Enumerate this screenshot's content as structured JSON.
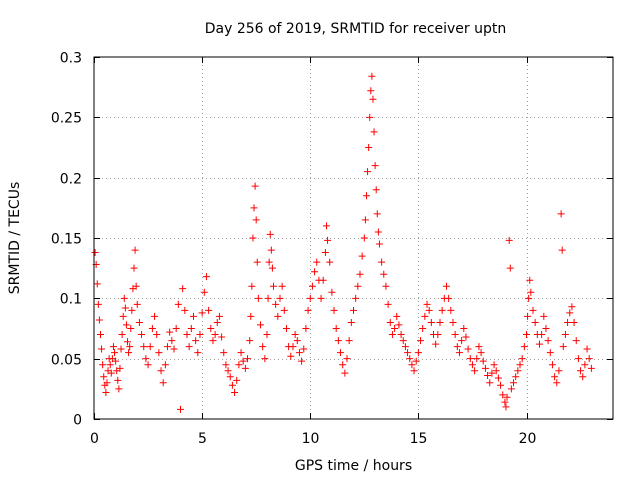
{
  "chart_data": {
    "type": "scatter",
    "title": "Day 256 of 2019, SRMTID for receiver uptn",
    "xlabel": "GPS time / hours",
    "ylabel": "SRMTID / TECUs",
    "xlim": [
      0,
      24
    ],
    "ylim": [
      0,
      0.3
    ],
    "xticks": [
      0,
      5,
      10,
      15,
      20
    ],
    "xtick_labels": [
      "0",
      "5",
      "10",
      "15",
      "20"
    ],
    "yticks": [
      0,
      0.05,
      0.1,
      0.15,
      0.2,
      0.25,
      0.3
    ],
    "ytick_labels": [
      "0",
      "0.05",
      "0.1",
      "0.15",
      "0.2",
      "0.25",
      "0.3"
    ],
    "grid": true,
    "marker": "plus",
    "color": "#ff0000",
    "series": [
      {
        "name": "SRMTID",
        "points": [
          [
            0.05,
            0.138
          ],
          [
            0.1,
            0.128
          ],
          [
            0.15,
            0.112
          ],
          [
            0.2,
            0.095
          ],
          [
            0.25,
            0.082
          ],
          [
            0.3,
            0.07
          ],
          [
            0.35,
            0.058
          ],
          [
            0.4,
            0.045
          ],
          [
            0.45,
            0.035
          ],
          [
            0.5,
            0.028
          ],
          [
            0.55,
            0.022
          ],
          [
            0.6,
            0.03
          ],
          [
            0.65,
            0.04
          ],
          [
            0.7,
            0.05
          ],
          [
            0.75,
            0.045
          ],
          [
            0.8,
            0.038
          ],
          [
            0.85,
            0.05
          ],
          [
            0.9,
            0.06
          ],
          [
            0.95,
            0.055
          ],
          [
            1.0,
            0.048
          ],
          [
            1.05,
            0.04
          ],
          [
            1.1,
            0.032
          ],
          [
            1.15,
            0.025
          ],
          [
            1.2,
            0.042
          ],
          [
            1.25,
            0.058
          ],
          [
            1.3,
            0.07
          ],
          [
            1.35,
            0.085
          ],
          [
            1.4,
            0.1
          ],
          [
            1.45,
            0.092
          ],
          [
            1.5,
            0.078
          ],
          [
            1.55,
            0.064
          ],
          [
            1.6,
            0.055
          ],
          [
            1.65,
            0.06
          ],
          [
            1.7,
            0.075
          ],
          [
            1.75,
            0.09
          ],
          [
            1.8,
            0.108
          ],
          [
            1.85,
            0.125
          ],
          [
            1.9,
            0.14
          ],
          [
            1.95,
            0.11
          ],
          [
            2.0,
            0.095
          ],
          [
            2.1,
            0.08
          ],
          [
            2.2,
            0.07
          ],
          [
            2.3,
            0.06
          ],
          [
            2.4,
            0.05
          ],
          [
            2.5,
            0.045
          ],
          [
            2.6,
            0.06
          ],
          [
            2.7,
            0.075
          ],
          [
            2.8,
            0.085
          ],
          [
            2.9,
            0.07
          ],
          [
            3.0,
            0.055
          ],
          [
            3.1,
            0.04
          ],
          [
            3.2,
            0.03
          ],
          [
            3.3,
            0.045
          ],
          [
            3.4,
            0.06
          ],
          [
            3.5,
            0.072
          ],
          [
            3.6,
            0.065
          ],
          [
            3.7,
            0.058
          ],
          [
            3.8,
            0.075
          ],
          [
            3.9,
            0.095
          ],
          [
            4.0,
            0.008
          ],
          [
            4.1,
            0.108
          ],
          [
            4.2,
            0.09
          ],
          [
            4.3,
            0.07
          ],
          [
            4.4,
            0.06
          ],
          [
            4.5,
            0.075
          ],
          [
            4.6,
            0.085
          ],
          [
            4.7,
            0.065
          ],
          [
            4.8,
            0.055
          ],
          [
            4.9,
            0.07
          ],
          [
            5.0,
            0.088
          ],
          [
            5.1,
            0.105
          ],
          [
            5.2,
            0.118
          ],
          [
            5.3,
            0.09
          ],
          [
            5.4,
            0.075
          ],
          [
            5.5,
            0.065
          ],
          [
            5.6,
            0.07
          ],
          [
            5.7,
            0.08
          ],
          [
            5.8,
            0.085
          ],
          [
            5.9,
            0.068
          ],
          [
            6.0,
            0.055
          ],
          [
            6.1,
            0.045
          ],
          [
            6.2,
            0.04
          ],
          [
            6.3,
            0.035
          ],
          [
            6.4,
            0.028
          ],
          [
            6.5,
            0.022
          ],
          [
            6.6,
            0.032
          ],
          [
            6.7,
            0.045
          ],
          [
            6.8,
            0.055
          ],
          [
            6.9,
            0.048
          ],
          [
            7.0,
            0.042
          ],
          [
            7.1,
            0.05
          ],
          [
            7.2,
            0.065
          ],
          [
            7.25,
            0.085
          ],
          [
            7.3,
            0.11
          ],
          [
            7.35,
            0.15
          ],
          [
            7.4,
            0.175
          ],
          [
            7.45,
            0.193
          ],
          [
            7.5,
            0.165
          ],
          [
            7.55,
            0.13
          ],
          [
            7.6,
            0.1
          ],
          [
            7.7,
            0.078
          ],
          [
            7.8,
            0.06
          ],
          [
            7.9,
            0.05
          ],
          [
            8.0,
            0.07
          ],
          [
            8.05,
            0.1
          ],
          [
            8.1,
            0.13
          ],
          [
            8.15,
            0.153
          ],
          [
            8.2,
            0.14
          ],
          [
            8.25,
            0.125
          ],
          [
            8.3,
            0.11
          ],
          [
            8.4,
            0.095
          ],
          [
            8.5,
            0.085
          ],
          [
            8.6,
            0.1
          ],
          [
            8.7,
            0.11
          ],
          [
            8.8,
            0.09
          ],
          [
            8.9,
            0.075
          ],
          [
            9.0,
            0.06
          ],
          [
            9.1,
            0.052
          ],
          [
            9.2,
            0.06
          ],
          [
            9.3,
            0.07
          ],
          [
            9.4,
            0.065
          ],
          [
            9.5,
            0.055
          ],
          [
            9.6,
            0.048
          ],
          [
            9.7,
            0.058
          ],
          [
            9.8,
            0.075
          ],
          [
            9.9,
            0.09
          ],
          [
            10.0,
            0.1
          ],
          [
            10.1,
            0.11
          ],
          [
            10.2,
            0.122
          ],
          [
            10.3,
            0.13
          ],
          [
            10.4,
            0.115
          ],
          [
            10.5,
            0.1
          ],
          [
            10.6,
            0.115
          ],
          [
            10.7,
            0.138
          ],
          [
            10.75,
            0.16
          ],
          [
            10.8,
            0.148
          ],
          [
            10.9,
            0.13
          ],
          [
            11.0,
            0.105
          ],
          [
            11.1,
            0.09
          ],
          [
            11.2,
            0.075
          ],
          [
            11.3,
            0.065
          ],
          [
            11.4,
            0.055
          ],
          [
            11.5,
            0.045
          ],
          [
            11.6,
            0.038
          ],
          [
            11.7,
            0.05
          ],
          [
            11.8,
            0.065
          ],
          [
            11.9,
            0.08
          ],
          [
            12.0,
            0.09
          ],
          [
            12.1,
            0.1
          ],
          [
            12.2,
            0.11
          ],
          [
            12.3,
            0.12
          ],
          [
            12.4,
            0.135
          ],
          [
            12.5,
            0.15
          ],
          [
            12.55,
            0.165
          ],
          [
            12.6,
            0.185
          ],
          [
            12.65,
            0.205
          ],
          [
            12.7,
            0.225
          ],
          [
            12.75,
            0.25
          ],
          [
            12.8,
            0.272
          ],
          [
            12.85,
            0.284
          ],
          [
            12.9,
            0.265
          ],
          [
            12.95,
            0.238
          ],
          [
            13.0,
            0.21
          ],
          [
            13.05,
            0.19
          ],
          [
            13.1,
            0.17
          ],
          [
            13.15,
            0.155
          ],
          [
            13.2,
            0.145
          ],
          [
            13.3,
            0.13
          ],
          [
            13.4,
            0.12
          ],
          [
            13.5,
            0.11
          ],
          [
            13.6,
            0.095
          ],
          [
            13.7,
            0.08
          ],
          [
            13.8,
            0.07
          ],
          [
            13.9,
            0.075
          ],
          [
            14.0,
            0.085
          ],
          [
            14.1,
            0.078
          ],
          [
            14.2,
            0.07
          ],
          [
            14.3,
            0.065
          ],
          [
            14.4,
            0.06
          ],
          [
            14.5,
            0.055
          ],
          [
            14.6,
            0.05
          ],
          [
            14.7,
            0.045
          ],
          [
            14.8,
            0.04
          ],
          [
            14.9,
            0.048
          ],
          [
            15.0,
            0.055
          ],
          [
            15.1,
            0.065
          ],
          [
            15.2,
            0.075
          ],
          [
            15.3,
            0.085
          ],
          [
            15.4,
            0.095
          ],
          [
            15.5,
            0.09
          ],
          [
            15.6,
            0.08
          ],
          [
            15.7,
            0.07
          ],
          [
            15.8,
            0.062
          ],
          [
            15.9,
            0.07
          ],
          [
            16.0,
            0.08
          ],
          [
            16.1,
            0.09
          ],
          [
            16.2,
            0.1
          ],
          [
            16.3,
            0.11
          ],
          [
            16.4,
            0.1
          ],
          [
            16.5,
            0.09
          ],
          [
            16.6,
            0.08
          ],
          [
            16.7,
            0.07
          ],
          [
            16.8,
            0.06
          ],
          [
            16.9,
            0.055
          ],
          [
            17.0,
            0.065
          ],
          [
            17.1,
            0.075
          ],
          [
            17.2,
            0.068
          ],
          [
            17.3,
            0.058
          ],
          [
            17.4,
            0.05
          ],
          [
            17.5,
            0.045
          ],
          [
            17.6,
            0.04
          ],
          [
            17.7,
            0.05
          ],
          [
            17.8,
            0.06
          ],
          [
            17.9,
            0.055
          ],
          [
            18.0,
            0.048
          ],
          [
            18.1,
            0.042
          ],
          [
            18.2,
            0.036
          ],
          [
            18.3,
            0.03
          ],
          [
            18.4,
            0.038
          ],
          [
            18.5,
            0.045
          ],
          [
            18.6,
            0.04
          ],
          [
            18.7,
            0.034
          ],
          [
            18.8,
            0.028
          ],
          [
            18.9,
            0.02
          ],
          [
            19.0,
            0.014
          ],
          [
            19.05,
            0.01
          ],
          [
            19.1,
            0.018
          ],
          [
            19.2,
            0.148
          ],
          [
            19.25,
            0.125
          ],
          [
            19.3,
            0.025
          ],
          [
            19.4,
            0.03
          ],
          [
            19.5,
            0.035
          ],
          [
            19.6,
            0.04
          ],
          [
            19.7,
            0.045
          ],
          [
            19.8,
            0.05
          ],
          [
            19.9,
            0.06
          ],
          [
            20.0,
            0.07
          ],
          [
            20.05,
            0.085
          ],
          [
            20.1,
            0.1
          ],
          [
            20.15,
            0.115
          ],
          [
            20.2,
            0.105
          ],
          [
            20.3,
            0.09
          ],
          [
            20.4,
            0.08
          ],
          [
            20.5,
            0.07
          ],
          [
            20.6,
            0.062
          ],
          [
            20.7,
            0.07
          ],
          [
            20.8,
            0.085
          ],
          [
            20.9,
            0.075
          ],
          [
            21.0,
            0.065
          ],
          [
            21.1,
            0.055
          ],
          [
            21.2,
            0.045
          ],
          [
            21.3,
            0.035
          ],
          [
            21.4,
            0.03
          ],
          [
            21.5,
            0.04
          ],
          [
            21.6,
            0.17
          ],
          [
            21.65,
            0.14
          ],
          [
            21.7,
            0.06
          ],
          [
            21.8,
            0.07
          ],
          [
            21.9,
            0.08
          ],
          [
            22.0,
            0.088
          ],
          [
            22.1,
            0.093
          ],
          [
            22.2,
            0.08
          ],
          [
            22.3,
            0.065
          ],
          [
            22.4,
            0.05
          ],
          [
            22.5,
            0.04
          ],
          [
            22.6,
            0.035
          ],
          [
            22.7,
            0.045
          ],
          [
            22.8,
            0.058
          ],
          [
            22.9,
            0.05
          ],
          [
            23.0,
            0.042
          ]
        ]
      }
    ]
  }
}
